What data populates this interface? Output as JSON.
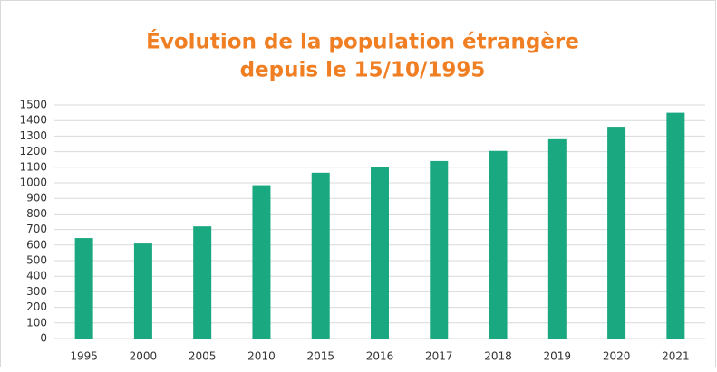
{
  "chart_data": {
    "type": "bar",
    "title": [
      "Évolution de la population étrangère",
      "depuis le 15/10/1995"
    ],
    "categories": [
      "1995",
      "2000",
      "2005",
      "2010",
      "2015",
      "2016",
      "2017",
      "2018",
      "2019",
      "2020",
      "2021"
    ],
    "values": [
      645,
      610,
      720,
      985,
      1065,
      1100,
      1140,
      1205,
      1280,
      1360,
      1450
    ],
    "color": "#1aa880",
    "ylim": [
      0,
      1500
    ],
    "yticks": [
      0,
      100,
      200,
      300,
      400,
      500,
      600,
      700,
      800,
      900,
      1000,
      1100,
      1200,
      1300,
      1400,
      1500
    ],
    "grid": true
  }
}
